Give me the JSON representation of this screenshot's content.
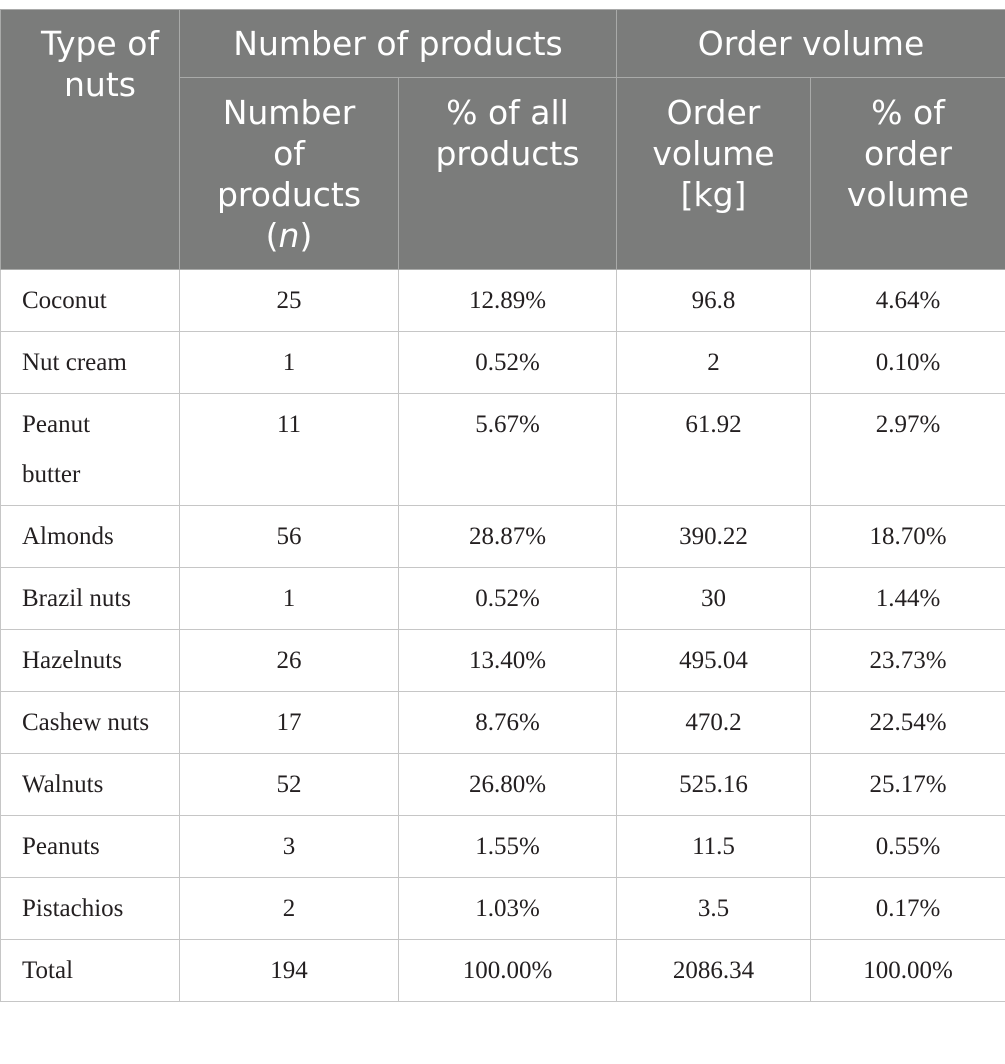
{
  "header": {
    "type_of_nuts": "Type of nuts",
    "group_products": "Number of products",
    "group_volume": "Order volume",
    "sub_number_line1": "Number",
    "sub_number_line2": "of",
    "sub_number_line3": "products",
    "sub_number_italic": "n",
    "sub_pct_products": "% of all\nproducts",
    "sub_order_volume": "Order\nvolume\n[kg]",
    "sub_pct_volume": "% of\norder\nvolume"
  },
  "rows": [
    {
      "type": "Coconut",
      "n": "25",
      "pct_products": "12.89%",
      "volume": "96.8",
      "pct_volume": "4.64%"
    },
    {
      "type": "Nut cream",
      "n": "1",
      "pct_products": "0.52%",
      "volume": "2",
      "pct_volume": "0.10%"
    },
    {
      "type": "Peanut butter",
      "n": "11",
      "pct_products": "5.67%",
      "volume": "61.92",
      "pct_volume": "2.97%"
    },
    {
      "type": "Almonds",
      "n": "56",
      "pct_products": "28.87%",
      "volume": "390.22",
      "pct_volume": "18.70%"
    },
    {
      "type": "Brazil nuts",
      "n": "1",
      "pct_products": "0.52%",
      "volume": "30",
      "pct_volume": "1.44%"
    },
    {
      "type": "Hazelnuts",
      "n": "26",
      "pct_products": "13.40%",
      "volume": "495.04",
      "pct_volume": "23.73%"
    },
    {
      "type": "Cashew nuts",
      "n": "17",
      "pct_products": "8.76%",
      "volume": "470.2",
      "pct_volume": "22.54%"
    },
    {
      "type": "Walnuts",
      "n": "52",
      "pct_products": "26.80%",
      "volume": "525.16",
      "pct_volume": "25.17%"
    },
    {
      "type": "Peanuts",
      "n": "3",
      "pct_products": "1.55%",
      "volume": "11.5",
      "pct_volume": "0.55%"
    },
    {
      "type": "Pistachios",
      "n": "2",
      "pct_products": "1.03%",
      "volume": "3.5",
      "pct_volume": "0.17%"
    },
    {
      "type": "Total",
      "n": "194",
      "pct_products": "100.00%",
      "volume": "2086.34",
      "pct_volume": "100.00%"
    }
  ]
}
